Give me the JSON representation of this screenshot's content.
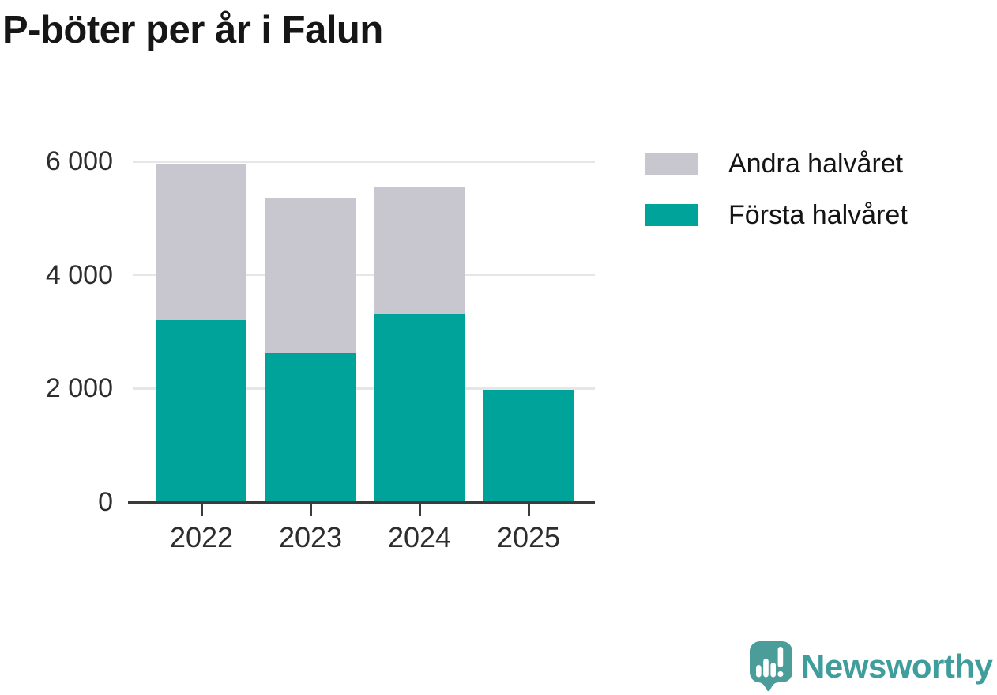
{
  "title": "P-böter per år i Falun",
  "legend": {
    "items": [
      {
        "label": "Andra halvåret",
        "color": "#c8c7cf"
      },
      {
        "label": "Första halvåret",
        "color": "#00a39a"
      }
    ]
  },
  "chart_data": {
    "type": "bar",
    "stacked": true,
    "title": "P-böter per år i Falun",
    "categories": [
      "2022",
      "2023",
      "2024",
      "2025"
    ],
    "series": [
      {
        "name": "Första halvåret",
        "color": "#00a39a",
        "values": [
          3200,
          2620,
          3310,
          1980
        ]
      },
      {
        "name": "Andra halvåret",
        "color": "#c8c7cf",
        "values": [
          2740,
          2730,
          2240,
          0
        ]
      }
    ],
    "totals": [
      5940,
      5350,
      5550,
      1980
    ],
    "xlabel": "",
    "ylabel": "",
    "ylim": [
      0,
      6000
    ],
    "yticks": [
      0,
      2000,
      4000,
      6000
    ],
    "ytick_labels": [
      "0",
      "2 000",
      "4 000",
      "6 000"
    ],
    "grid": true,
    "legend_position": "top-right"
  },
  "branding": {
    "logo_text": "Newsworthy",
    "logo_color": "#3f9e9b",
    "logo_icon": "chart-speech-bubble",
    "logo_icon_color": "#4a9d99"
  }
}
